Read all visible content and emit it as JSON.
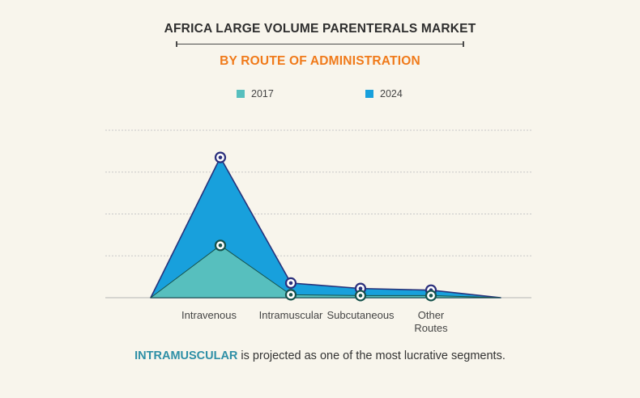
{
  "title": "AFRICA LARGE VOLUME PARENTERALS MARKET",
  "subtitle": "BY ROUTE OF ADMINISTRATION",
  "colors": {
    "series_2017": "#57bfbe",
    "series_2024": "#18a0dc",
    "marker_2017_stroke": "#16524c",
    "marker_2024_stroke": "#2b2f7c",
    "line_dark": "#27327a",
    "title_accent": "#f07a1a",
    "footer_accent": "#2e8fa6"
  },
  "footer": {
    "highlight": "INTRAMUSCULAR",
    "text": " is projected as one of the most lucrative segments."
  },
  "chart_data": {
    "type": "area",
    "categories": [
      "Intravenous",
      "Intramuscular",
      "Subcutaneous",
      "Other Routes"
    ],
    "grid": true,
    "legend_position": "top",
    "series": [
      {
        "name": "2017",
        "values": [
          1.25,
          0.07,
          0.05,
          0.05
        ]
      },
      {
        "name": "2024",
        "values": [
          3.35,
          0.35,
          0.22,
          0.18
        ]
      }
    ],
    "ylim": [
      0,
      4
    ]
  }
}
